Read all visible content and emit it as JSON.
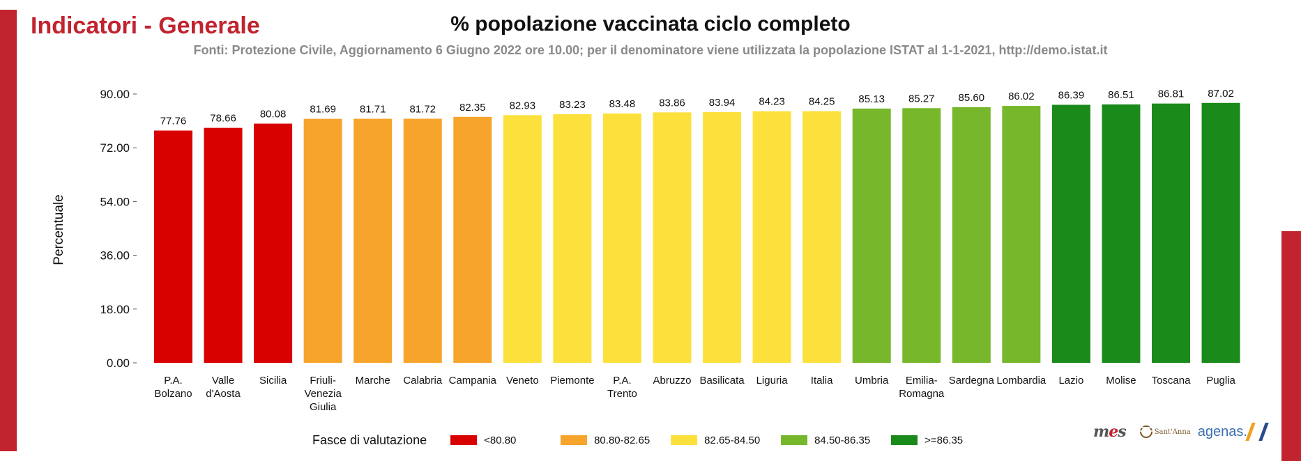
{
  "header": {
    "page_heading": "Indicatori - Generale",
    "brand_color": "#c1232f"
  },
  "chart_data": {
    "type": "bar",
    "title": "% popolazione vaccinata ciclo completo",
    "subtitle": "Fonti: Protezione Civile, Aggiornamento 6 Giugno 2022 ore 10.00; per il denominatore viene utilizzata la popolazione ISTAT al 1-1-2021, http://demo.istat.it",
    "xlabel": "",
    "ylabel": "Percentuale",
    "ylim": [
      0,
      90
    ],
    "yticks": [
      "0.00",
      "18.00",
      "36.00",
      "54.00",
      "72.00",
      "90.00"
    ],
    "grid": false,
    "categories": [
      [
        "P.A.",
        "Bolzano"
      ],
      [
        "Valle",
        "d'Aosta"
      ],
      [
        "Sicilia"
      ],
      [
        "Friuli-",
        "Venezia",
        "Giulia"
      ],
      [
        "Marche"
      ],
      [
        "Calabria"
      ],
      [
        "Campania"
      ],
      [
        "Veneto"
      ],
      [
        "Piemonte"
      ],
      [
        "P.A.",
        "Trento"
      ],
      [
        "Abruzzo"
      ],
      [
        "Basilicata"
      ],
      [
        "Liguria"
      ],
      [
        "Italia"
      ],
      [
        "Umbria"
      ],
      [
        "Emilia-",
        "Romagna"
      ],
      [
        "Sardegna"
      ],
      [
        "Lombardia"
      ],
      [
        "Lazio"
      ],
      [
        "Molise"
      ],
      [
        "Toscana"
      ],
      [
        "Puglia"
      ]
    ],
    "values": [
      77.76,
      78.66,
      80.08,
      81.69,
      81.71,
      81.72,
      82.35,
      82.93,
      83.23,
      83.48,
      83.86,
      83.94,
      84.23,
      84.25,
      85.13,
      85.27,
      85.6,
      86.02,
      86.39,
      86.51,
      86.81,
      87.02
    ],
    "value_labels": [
      "77.76",
      "78.66",
      "80.08",
      "81.69",
      "81.71",
      "81.72",
      "82.35",
      "82.93",
      "83.23",
      "83.48",
      "83.86",
      "83.94",
      "84.23",
      "84.25",
      "85.13",
      "85.27",
      "85.60",
      "86.02",
      "86.39",
      "86.51",
      "86.81",
      "87.02"
    ],
    "bar_band": [
      0,
      0,
      0,
      1,
      1,
      1,
      1,
      2,
      2,
      2,
      2,
      2,
      2,
      2,
      3,
      3,
      3,
      3,
      4,
      4,
      4,
      4
    ],
    "legend_position": "bottom",
    "legend": {
      "title": "Fasce di valutazione",
      "bands": [
        {
          "label": "<80.80",
          "color": "#d90000"
        },
        {
          "label": "80.80-82.65",
          "color": "#f7a42c"
        },
        {
          "label": "82.65-84.50",
          "color": "#fce13c"
        },
        {
          "label": "84.50-86.35",
          "color": "#77b72c"
        },
        {
          "label": ">=86.35",
          "color": "#1a8a1a"
        }
      ]
    }
  },
  "logos": {
    "mes": "mes",
    "agenas": "agenas."
  }
}
